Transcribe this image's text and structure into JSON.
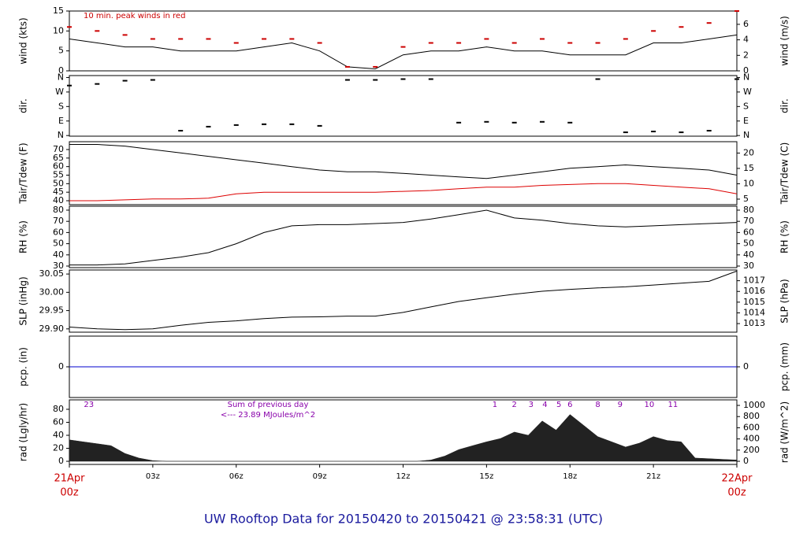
{
  "footer": "UW Rooftop Data for 20150420  to  20150421 @ 23:58:31  (UTC)",
  "chart_data": [
    {
      "type": "line",
      "ylabel": "wind (kts)",
      "y2label": "wind (m/s)",
      "annotation": "10 min. peak winds in red",
      "xlim": [
        0,
        24
      ],
      "x": [
        0,
        1,
        2,
        3,
        4,
        5,
        6,
        7,
        8,
        9,
        10,
        11,
        12,
        13,
        14,
        15,
        16,
        17,
        18,
        19,
        20,
        21,
        22,
        23,
        24
      ],
      "ylim": [
        0,
        15
      ],
      "yticks": [
        0,
        5,
        10,
        15
      ],
      "y2lim": [
        0,
        7.717
      ],
      "y2ticks": [
        0,
        2,
        4,
        6
      ],
      "series": [
        {
          "color": "#000000",
          "values": [
            8,
            7,
            6,
            6,
            5,
            5,
            5,
            6,
            7,
            5,
            1,
            0.5,
            4,
            5,
            5,
            6,
            5,
            5,
            4,
            4,
            4,
            7,
            7,
            8,
            9
          ]
        },
        {
          "color": "#cc0000",
          "style": "dash",
          "values": [
            11,
            10,
            9,
            8,
            8,
            8,
            7,
            8,
            8,
            7,
            1,
            1,
            6,
            7,
            7,
            8,
            7,
            8,
            7,
            7,
            8,
            10,
            11,
            12,
            15
          ]
        }
      ]
    },
    {
      "type": "scatter",
      "ylabel": "dir.",
      "y2label": "dir.",
      "xlim": [
        0,
        24
      ],
      "x": [
        0,
        1,
        2,
        3,
        4,
        5,
        6,
        7,
        8,
        9,
        10,
        11,
        12,
        13,
        14,
        15,
        16,
        17,
        18,
        19,
        20,
        21,
        22,
        23,
        24
      ],
      "ylim": [
        -4,
        372
      ],
      "yticks": [
        {
          "value": 360,
          "label": "N"
        },
        {
          "value": 270,
          "label": "W"
        },
        {
          "value": 180,
          "label": "S"
        },
        {
          "value": 90,
          "label": "E"
        },
        {
          "value": 0,
          "label": "N"
        }
      ],
      "y2lim": [
        -4,
        372
      ],
      "y2ticks": [
        {
          "value": 360,
          "label": "N"
        },
        {
          "value": 270,
          "label": "W"
        },
        {
          "value": 180,
          "label": "S"
        },
        {
          "value": 90,
          "label": "E"
        },
        {
          "value": 0,
          "label": "N"
        }
      ],
      "series": [
        {
          "color": "#000000",
          "values": [
            310,
            320,
            340,
            345,
            30,
            55,
            65,
            70,
            70,
            60,
            345,
            345,
            350,
            350,
            80,
            85,
            80,
            85,
            80,
            350,
            20,
            25,
            20,
            30,
            350
          ]
        }
      ]
    },
    {
      "type": "line",
      "ylabel": "Tair/Tdew (F)",
      "y2label": "Tair/Tdew (C)",
      "xlim": [
        0,
        24
      ],
      "x": [
        0,
        1,
        2,
        3,
        4,
        5,
        6,
        7,
        8,
        9,
        10,
        11,
        12,
        13,
        14,
        15,
        16,
        17,
        18,
        19,
        20,
        21,
        22,
        23,
        24
      ],
      "ylim": [
        37.7,
        74.6
      ],
      "yticks": [
        40,
        45,
        50,
        55,
        60,
        65,
        70
      ],
      "y2lim": [
        3.2,
        23.7
      ],
      "y2ticks": [
        5,
        10,
        15,
        20
      ],
      "series": [
        {
          "color": "#000000",
          "values": [
            73,
            73,
            72,
            70,
            68,
            66,
            64,
            62,
            60,
            58,
            57,
            57,
            56,
            55,
            54,
            53,
            55,
            57,
            59,
            60,
            61,
            60,
            59,
            58,
            55
          ]
        },
        {
          "color": "#dd0000",
          "values": [
            40,
            40,
            40.5,
            41,
            41,
            41.5,
            44,
            45,
            45,
            45,
            45,
            45,
            45.5,
            46,
            47,
            48,
            48,
            49,
            49.5,
            50,
            50,
            49,
            48,
            47,
            44
          ]
        }
      ]
    },
    {
      "type": "line",
      "ylabel": "RH (%)",
      "y2label": "RH (%)",
      "xlim": [
        0,
        24
      ],
      "x": [
        0,
        1,
        2,
        3,
        4,
        5,
        6,
        7,
        8,
        9,
        10,
        11,
        12,
        13,
        14,
        15,
        16,
        17,
        18,
        19,
        20,
        21,
        22,
        23,
        24
      ],
      "ylim": [
        28.6,
        83.5
      ],
      "yticks": [
        30,
        40,
        50,
        60,
        70,
        80
      ],
      "y2lim": [
        28.6,
        83.5
      ],
      "y2ticks": [
        30,
        40,
        50,
        60,
        70,
        80
      ],
      "series": [
        {
          "color": "#000000",
          "values": [
            31,
            31,
            32,
            35,
            38,
            42,
            50,
            60,
            66,
            67,
            67,
            68,
            69,
            72,
            76,
            80,
            73,
            71,
            68,
            66,
            65,
            66,
            67,
            68,
            69
          ]
        }
      ]
    },
    {
      "type": "line",
      "ylabel": "SLP (inHg)",
      "y2label": "SLP (hPa)",
      "xlim": [
        0,
        24
      ],
      "x": [
        0,
        1,
        2,
        3,
        4,
        5,
        6,
        7,
        8,
        9,
        10,
        11,
        12,
        13,
        14,
        15,
        16,
        17,
        18,
        19,
        20,
        21,
        22,
        23,
        24
      ],
      "ylim": [
        29.891,
        30.061
      ],
      "yticks": [
        {
          "value": 29.9,
          "label": "29.90"
        },
        {
          "value": 29.95,
          "label": "29.95"
        },
        {
          "value": 30,
          "label": "30.00"
        },
        {
          "value": 30.05,
          "label": "30.05"
        }
      ],
      "y2lim": [
        1012.2,
        1018.0
      ],
      "y2ticks": [
        1013,
        1014,
        1015,
        1016,
        1017
      ],
      "series": [
        {
          "color": "#000000",
          "values": [
            29.905,
            29.9,
            29.898,
            29.9,
            29.91,
            29.918,
            29.922,
            29.928,
            29.932,
            29.933,
            29.935,
            29.935,
            29.945,
            29.96,
            29.975,
            29.985,
            29.995,
            30.003,
            30.008,
            30.012,
            30.015,
            30.02,
            30.025,
            30.03,
            30.058
          ]
        }
      ]
    },
    {
      "type": "line",
      "ylabel": "pcp. (in)",
      "y2label": "pcp. (mm)",
      "xlim": [
        0,
        24
      ],
      "x": [
        0,
        24
      ],
      "ylim": [
        -0.1,
        0.1
      ],
      "yticks": [
        0
      ],
      "y2lim": [
        -2.54,
        2.54
      ],
      "y2ticks": [
        0
      ],
      "series": [
        {
          "color": "#0000cc",
          "values": [
            0,
            0
          ]
        }
      ]
    },
    {
      "type": "area",
      "ylabel": "rad (Lgly/hr)",
      "y2label": "rad (W/m^2)",
      "annotations": [
        "Sum of previous day",
        "<--- 23.89 MJoules/m^2"
      ],
      "hour_marks": {
        "x": [
          0.7,
          15.3,
          16,
          16.6,
          17.1,
          17.6,
          18,
          19,
          19.8,
          20.85,
          21.7
        ],
        "labels": [
          "23",
          "1",
          "2",
          "3",
          "4",
          "5",
          "6",
          "8",
          "9",
          "10",
          "11"
        ]
      },
      "xlim": [
        0,
        24
      ],
      "xticks": [
        {
          "value": 0,
          "label": "00z",
          "date": "21Apr"
        },
        {
          "value": 3,
          "label": "03z"
        },
        {
          "value": 6,
          "label": "06z"
        },
        {
          "value": 9,
          "label": "09z"
        },
        {
          "value": 12,
          "label": "12z"
        },
        {
          "value": 15,
          "label": "15z"
        },
        {
          "value": 18,
          "label": "18z"
        },
        {
          "value": 21,
          "label": "21z"
        },
        {
          "value": 24,
          "label": "00z",
          "date": "22Apr"
        }
      ],
      "x": [
        0,
        0.5,
        1,
        1.5,
        2,
        2.5,
        3,
        3.5,
        4,
        4.5,
        5,
        5.5,
        6,
        6.5,
        7,
        7.5,
        8,
        8.5,
        9,
        9.5,
        10,
        10.5,
        11,
        11.5,
        12,
        12.5,
        13,
        13.5,
        14,
        14.5,
        15,
        15.5,
        16,
        16.5,
        17,
        17.5,
        18,
        18.5,
        19,
        19.5,
        20,
        20.5,
        21,
        21.5,
        22,
        22.5,
        23,
        23.5,
        24
      ],
      "ylim": [
        -4.8,
        94.5
      ],
      "yticks": [
        0,
        20,
        40,
        60,
        80
      ],
      "y2lim": [
        -56,
        1099
      ],
      "y2ticks": [
        0,
        200,
        400,
        600,
        800,
        1000
      ],
      "series": [
        {
          "color": "#222222",
          "values": [
            33,
            30,
            27,
            24,
            12,
            5,
            1,
            0,
            0,
            0,
            0,
            0,
            0,
            0,
            0,
            0,
            0,
            0,
            0,
            0,
            0,
            0,
            0,
            0,
            0,
            0,
            2,
            8,
            18,
            24,
            30,
            35,
            45,
            40,
            62,
            48,
            72,
            55,
            38,
            30,
            22,
            28,
            38,
            32,
            30,
            5,
            4,
            3,
            2
          ]
        }
      ]
    }
  ]
}
